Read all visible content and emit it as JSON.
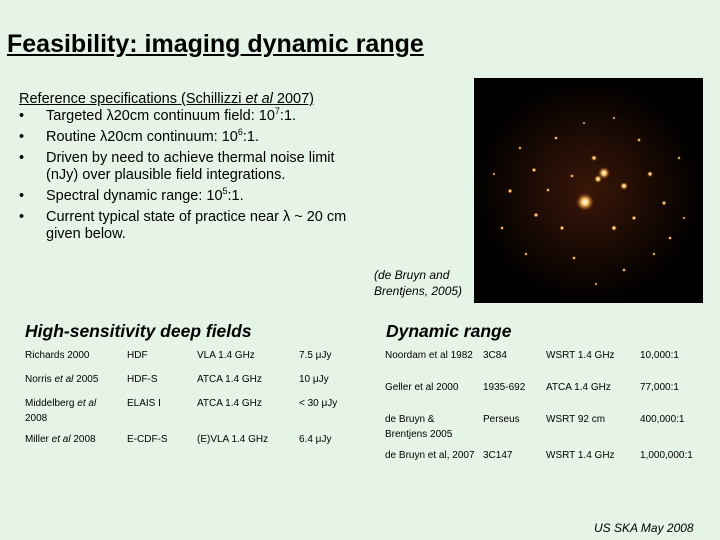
{
  "title": "Feasibility: imaging dynamic range",
  "reference": {
    "heading_prefix": "Reference specifications (Schillizzi ",
    "heading_etal": "et al",
    "heading_suffix": " 2007)",
    "bullet_char": "•",
    "b1_text": "Targeted λ20cm continuum field: 10",
    "b1_sup": "7",
    "b1_end": ":1.",
    "b2_text": "Routine λ20cm continuum: 10",
    "b2_sup": "6",
    "b2_end": ":1.",
    "b3_line1": "Driven by need to achieve thermal noise limit",
    "b3_line2": "(nJy) over plausible field integrations.",
    "b4_text": "Spectral dynamic range: 10",
    "b4_sup": "5",
    "b4_end": ":1.",
    "b5_line1": "Current typical state of practice near λ ~ 20 cm",
    "b5_line2": "given below."
  },
  "image_caption_line1": "(de Bruyn and",
  "image_caption_line2": "Brentjens, 2005)",
  "deep_fields": {
    "title": "High-sensitivity deep fields",
    "rows": [
      {
        "ref": "Richards 2000",
        "field": "HDF",
        "telescope": "VLA 1.4 GHz",
        "sensitivity": "7.5 μJy"
      },
      {
        "ref_a": "Norris ",
        "ref_b": "et al",
        "ref_c": " 2005",
        "field": "HDF-S",
        "telescope": "ATCA 1.4 GHz",
        "sensitivity": "10 μJy"
      },
      {
        "ref_a": "Middelberg ",
        "ref_b": "et al",
        "ref_c": " 2008",
        "field": "ELAIS I",
        "telescope": "ATCA 1.4 GHz",
        "sensitivity": "< 30 μJy"
      },
      {
        "ref_a": "Miller ",
        "ref_b": "et al",
        "ref_c": " 2008",
        "field": "E-CDF-S",
        "telescope": "(E)VLA 1.4 GHz",
        "sensitivity": "6.4 μJy"
      }
    ]
  },
  "dynamic_range": {
    "title": "Dynamic range",
    "rows": [
      {
        "ref": "Noordam et al 1982",
        "source": "3C84",
        "telescope": "WSRT 1.4 GHz",
        "range": "10,000:1"
      },
      {
        "ref": "Geller et al 2000",
        "source": "1935-692",
        "telescope": "ATCA 1.4 GHz",
        "range": "77,000:1"
      },
      {
        "ref": "de Bruyn & Brentjens 2005",
        "source": "Perseus",
        "telescope": "WSRT 92 cm",
        "range": "400,000:1"
      },
      {
        "ref": "de Bruyn et al, 2007",
        "source": "3C147",
        "telescope": "WSRT 1.4 GHz",
        "range": "1,000,000:1"
      }
    ]
  },
  "footer": "US SKA May 2008",
  "colors": {
    "background": "#e6f4e8",
    "image_background": "#000000",
    "source_glow": "#ffb040"
  }
}
